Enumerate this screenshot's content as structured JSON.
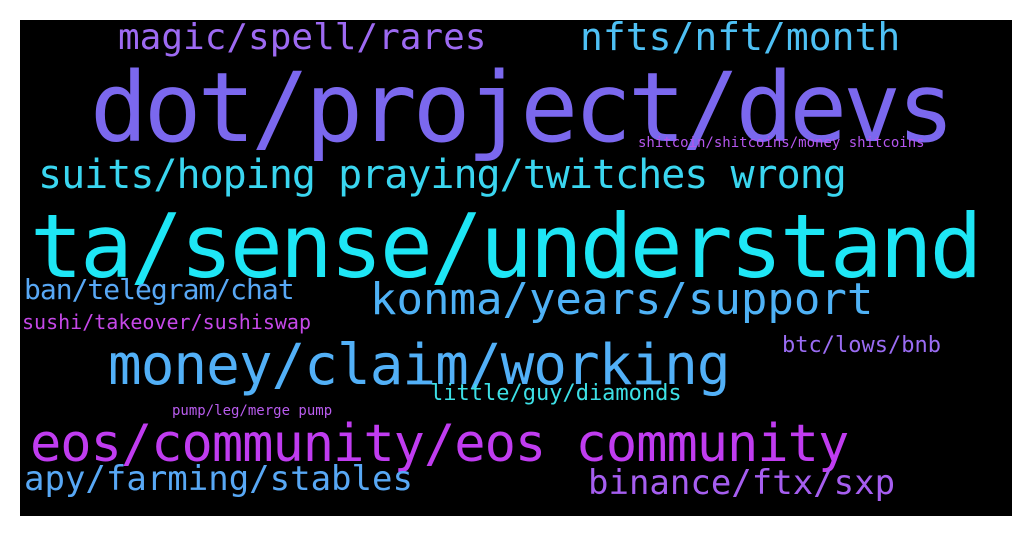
{
  "words": [
    {
      "key": "dot",
      "text": "dot/project/devs",
      "color": "#7b68ee"
    },
    {
      "key": "ta",
      "text": "ta/sense/understand",
      "color": "#1ee6f5"
    },
    {
      "key": "eos",
      "text": "eos/community/eos community",
      "color": "#c03cf0"
    },
    {
      "key": "money",
      "text": "money/claim/working",
      "color": "#52b0f7"
    },
    {
      "key": "konma",
      "text": "konma/years/support",
      "color": "#4fb2f6"
    },
    {
      "key": "suits",
      "text": "suits/hoping praying/twitches wrong",
      "color": "#3ad6f0"
    },
    {
      "key": "nfts",
      "text": "nfts/nft/month",
      "color": "#4ec0f4"
    },
    {
      "key": "magic",
      "text": "magic/spell/rares",
      "color": "#9d6af2"
    },
    {
      "key": "apy",
      "text": "apy/farming/stables",
      "color": "#58a8f5"
    },
    {
      "key": "binance",
      "text": "binance/ftx/sxp",
      "color": "#a65ef0"
    },
    {
      "key": "ban",
      "text": "ban/telegram/chat",
      "color": "#58a8f5"
    },
    {
      "key": "btc",
      "text": "btc/lows/bnb",
      "color": "#9a6cf3"
    },
    {
      "key": "little",
      "text": "little/guy/diamonds",
      "color": "#3de0e6"
    },
    {
      "key": "sushi",
      "text": "sushi/takeover/sushiswap",
      "color": "#c548e8"
    },
    {
      "key": "shitcoin",
      "text": "shitcoin/shitcoins/money shitcoins",
      "color": "#b456ee"
    },
    {
      "key": "pump",
      "text": "pump/leg/merge pump",
      "color": "#b95cee"
    }
  ]
}
